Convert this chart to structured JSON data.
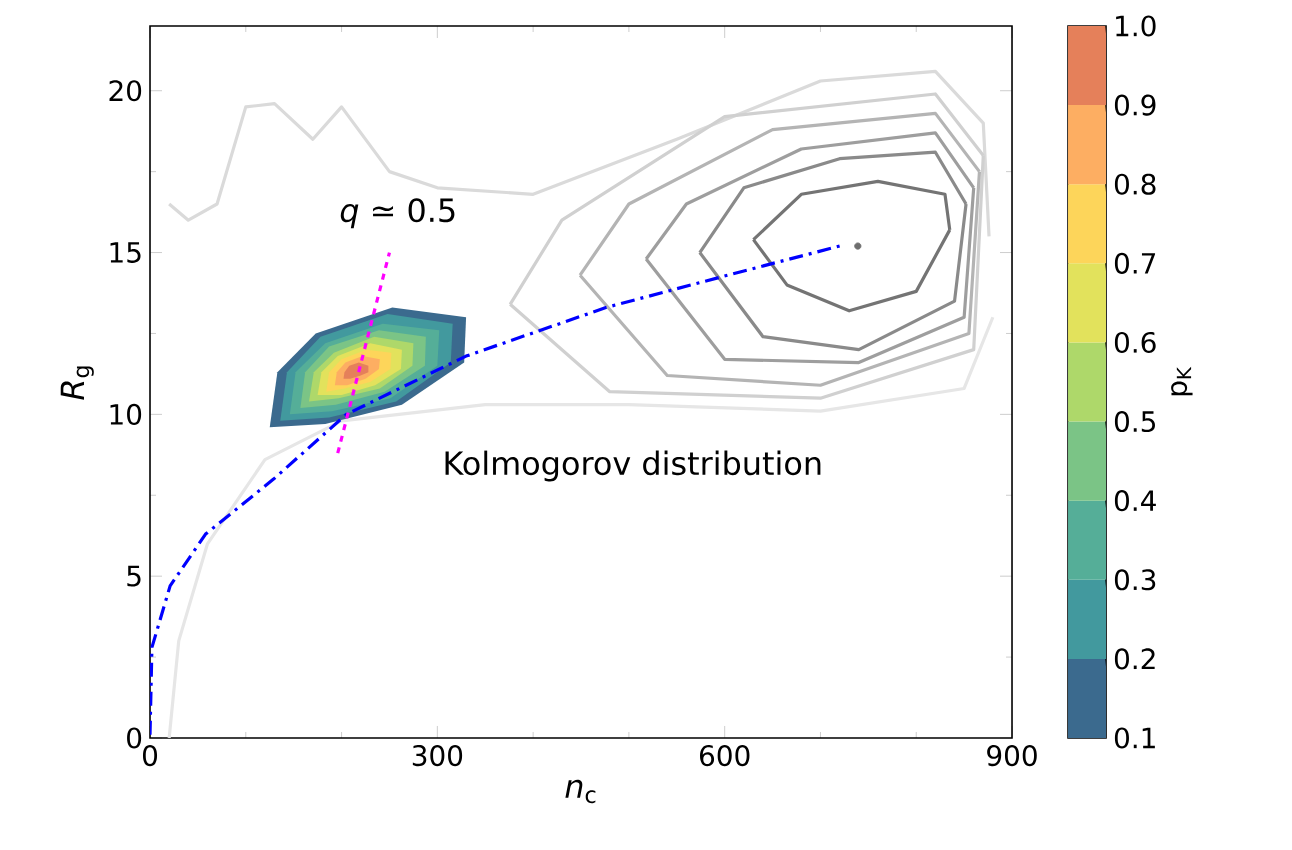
{
  "chart_data": {
    "type": "line",
    "xlabel": "*n*$_{c}$",
    "ylabel": "*R*$_{g}$",
    "clabel": "p$_{K}$",
    "xlim": [
      0,
      900
    ],
    "ylim": [
      0,
      22
    ],
    "xticks": [
      0,
      300,
      600,
      900
    ],
    "yticks": [
      0,
      5,
      10,
      15,
      20
    ],
    "clim": [
      0.1,
      1.0
    ],
    "cticks": [
      0.1,
      0.2,
      0.3,
      0.4,
      0.5,
      0.6,
      0.7,
      0.8,
      0.9,
      {
        "value": 1.0,
        "label": "1.0"
      }
    ],
    "annotations": [
      "*q* ≃ 0.5",
      "Kolmogorov distribution"
    ],
    "series": [
      {
        "type": "line",
        "color": "#e6e6e6",
        "x": [
          20,
          30,
          60,
          120,
          200,
          350,
          500,
          700,
          850,
          880
        ],
        "values": [
          0,
          3,
          6,
          8.6,
          9.8,
          10.3,
          10.3,
          10.1,
          10.8,
          13
        ]
      },
      {
        "type": "line",
        "color": "#dadada",
        "x": [
          20,
          40,
          70,
          100,
          130,
          170,
          200,
          250,
          300,
          400,
          550,
          700,
          820,
          870,
          876
        ],
        "values": [
          16.5,
          16,
          16.5,
          19.5,
          19.6,
          18.5,
          19.5,
          17.5,
          17,
          16.8,
          18.5,
          20.3,
          20.6,
          19,
          15.5
        ]
      },
      {
        "type": "line",
        "color": "#d0d0d0",
        "x": [
          376,
          430,
          600,
          820,
          870
        ],
        "values": [
          13.4,
          16.0,
          19.2,
          19.9,
          18.0
        ]
      },
      {
        "type": "line",
        "color": "#d0d0d0",
        "x": [
          376,
          480,
          700,
          860,
          870
        ],
        "values": [
          13.4,
          10.7,
          10.5,
          12.0,
          18.0
        ]
      },
      {
        "type": "line",
        "color": "#b4b4b4",
        "x": [
          449,
          500,
          650,
          820,
          866
        ],
        "values": [
          14.3,
          16.5,
          18.8,
          19.3,
          17.5
        ]
      },
      {
        "type": "line",
        "color": "#b4b4b4",
        "x": [
          449,
          540,
          700,
          855,
          866
        ],
        "values": [
          14.3,
          11.2,
          10.9,
          12.5,
          17.5
        ]
      },
      {
        "type": "line",
        "color": "#9e9e9e",
        "x": [
          518,
          560,
          680,
          820,
          860
        ],
        "values": [
          14.8,
          16.5,
          18.2,
          18.7,
          17.0
        ]
      },
      {
        "type": "line",
        "color": "#9e9e9e",
        "x": [
          518,
          600,
          740,
          850,
          860
        ],
        "values": [
          14.8,
          11.7,
          11.6,
          13.0,
          17.0
        ]
      },
      {
        "type": "line",
        "color": "#8a8a8a",
        "x": [
          574,
          620,
          720,
          820,
          852
        ],
        "values": [
          15.0,
          17.0,
          17.9,
          18.1,
          16.5
        ]
      },
      {
        "type": "line",
        "color": "#8a8a8a",
        "x": [
          574,
          640,
          740,
          840,
          852
        ],
        "values": [
          15.0,
          12.4,
          12.0,
          13.5,
          16.5
        ]
      },
      {
        "type": "line",
        "color": "#747474",
        "x": [
          630,
          680,
          760,
          830,
          835
        ],
        "values": [
          15.4,
          16.8,
          17.2,
          16.8,
          15.7
        ]
      },
      {
        "type": "line",
        "color": "#747474",
        "x": [
          630,
          665,
          730,
          800,
          835
        ],
        "values": [
          15.4,
          14.0,
          13.2,
          13.8,
          15.7
        ]
      },
      {
        "type": "area",
        "color": "#3b6a8e",
        "x": [
          125,
          183,
          263,
          328,
          330,
          253,
          173,
          133
        ],
        "values": [
          9.6,
          9.7,
          10.3,
          11.6,
          13.0,
          13.3,
          12.5,
          11.3
        ]
      },
      {
        "type": "area",
        "color": "#42999e",
        "x": [
          136,
          187,
          257,
          314,
          316,
          248,
          178,
          143
        ],
        "values": [
          9.8,
          9.9,
          10.4,
          11.6,
          12.8,
          13.1,
          12.4,
          11.3
        ]
      },
      {
        "type": "area",
        "color": "#55ae98",
        "x": [
          146,
          190,
          251,
          300,
          302,
          243,
          183,
          152
        ],
        "values": [
          10.0,
          10.1,
          10.5,
          11.5,
          12.6,
          12.8,
          12.2,
          11.3
        ]
      },
      {
        "type": "area",
        "color": "#7bc486",
        "x": [
          157,
          194,
          245,
          287,
          288,
          239,
          187,
          162
        ],
        "values": [
          10.2,
          10.3,
          10.7,
          11.5,
          12.4,
          12.6,
          12.1,
          11.3
        ]
      },
      {
        "type": "area",
        "color": "#aed86a",
        "x": [
          166,
          197,
          240,
          274,
          275,
          234,
          192,
          171
        ],
        "values": [
          10.4,
          10.5,
          10.8,
          11.5,
          12.2,
          12.4,
          11.9,
          11.3
        ]
      },
      {
        "type": "area",
        "color": "#e2e25c",
        "x": [
          175,
          200,
          235,
          262,
          263,
          230,
          196,
          179
        ],
        "values": [
          10.6,
          10.6,
          10.9,
          11.4,
          12.0,
          12.2,
          11.8,
          11.3
        ]
      },
      {
        "type": "area",
        "color": "#fdd55a",
        "x": [
          184,
          203,
          230,
          251,
          252,
          226,
          200,
          187
        ],
        "values": [
          10.7,
          10.8,
          11.0,
          11.4,
          11.9,
          12.0,
          11.7,
          11.3
        ]
      },
      {
        "type": "area",
        "color": "#fdae62",
        "x": [
          193,
          206,
          225,
          239,
          240,
          222,
          204,
          195
        ],
        "values": [
          10.9,
          10.9,
          11.1,
          11.4,
          11.7,
          11.8,
          11.6,
          11.3
        ]
      },
      {
        "type": "area",
        "color": "#e5805a",
        "x": [
          202,
          209,
          220,
          228,
          228,
          218,
          208,
          203
        ],
        "values": [
          11.1,
          11.1,
          11.2,
          11.3,
          11.5,
          11.6,
          11.5,
          11.3
        ]
      },
      {
        "type": "line",
        "color": "#0000ff",
        "line_style": "dashdot",
        "x": [
          0,
          2,
          21,
          58,
          129,
          205,
          330,
          476,
          616,
          720
        ],
        "values": [
          0.1,
          2.8,
          4.7,
          6.3,
          8.0,
          10.0,
          11.8,
          13.3,
          14.4,
          15.2
        ]
      },
      {
        "type": "line",
        "color": "#ff00ff",
        "line_style": "dashed",
        "x": [
          196,
          250
        ],
        "values": [
          8.8,
          15.0
        ]
      },
      {
        "type": "scatter",
        "color": "#6e6e6e",
        "x": [
          739
        ],
        "values": [
          15.2
        ]
      }
    ]
  }
}
